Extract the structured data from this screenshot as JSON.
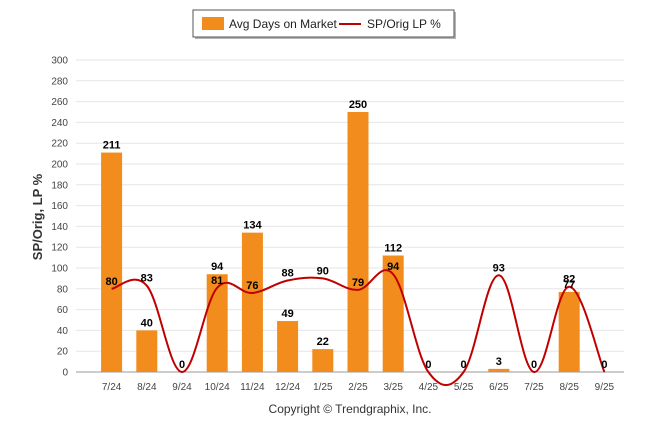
{
  "chart_data": {
    "type": "bar",
    "categories": [
      "7/24",
      "8/24",
      "9/24",
      "10/24",
      "11/24",
      "12/24",
      "1/25",
      "2/25",
      "3/25",
      "4/25",
      "5/25",
      "6/25",
      "7/25",
      "8/25",
      "9/25"
    ],
    "series": [
      {
        "name": "Avg Days on Market",
        "kind": "bar",
        "values": [
          211,
          40,
          0,
          94,
          134,
          49,
          22,
          250,
          112,
          0,
          0,
          3,
          0,
          77,
          0
        ],
        "labels": [
          "211",
          "40",
          "0",
          "94",
          "134",
          "49",
          "22",
          "250",
          "112",
          "0",
          "0",
          "3",
          "0",
          "77",
          "0"
        ],
        "color": "#F28C1C"
      },
      {
        "name": "SP/Orig LP %",
        "kind": "line",
        "values": [
          80,
          83,
          0,
          81,
          76,
          88,
          90,
          79,
          94,
          0,
          0,
          93,
          0,
          82,
          0
        ],
        "labels": [
          "80",
          "83",
          "",
          "81",
          "76",
          "88",
          "90",
          "79",
          "94",
          "",
          "",
          "93",
          "",
          "82",
          ""
        ],
        "color": "#C00000"
      }
    ],
    "ylabel": "SP/Orig, LP %",
    "ylim": [
      0,
      300
    ],
    "yticks": [
      "0",
      "20",
      "40",
      "60",
      "80",
      "100",
      "120",
      "140",
      "160",
      "180",
      "200",
      "220",
      "240",
      "260",
      "280",
      "300"
    ],
    "grid": true,
    "legend_position": "top-center",
    "footer": "Copyright © Trendgraphix, Inc."
  }
}
